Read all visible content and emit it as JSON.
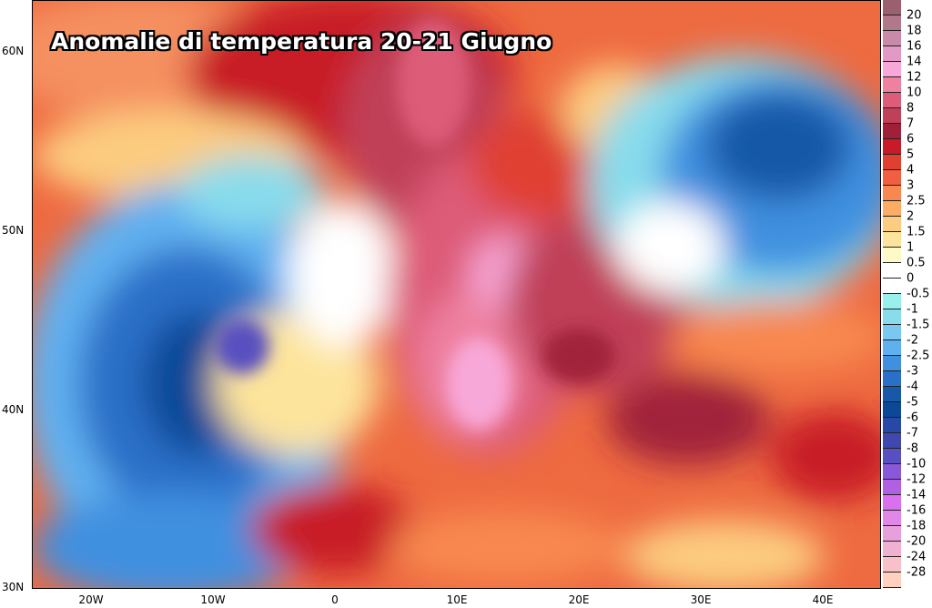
{
  "title": "Anomalie di temperatura 20-21 Giugno",
  "axes": {
    "lat_labels": [
      "60N",
      "50N",
      "40N",
      "30N"
    ],
    "lon_labels": [
      "20W",
      "10W",
      "0",
      "10E",
      "20E",
      "30E",
      "40E"
    ]
  },
  "colorbar": {
    "labels": [
      "20",
      "18",
      "16",
      "14",
      "12",
      "10",
      "8",
      "7",
      "6",
      "5",
      "4",
      "3",
      "2.5",
      "2",
      "1.5",
      "1",
      "0.5",
      "0",
      "-0.5",
      "-1",
      "-1.5",
      "-2",
      "-2.5",
      "-3",
      "-4",
      "-5",
      "-6",
      "-7",
      "-8",
      "-10",
      "-12",
      "-14",
      "-16",
      "-18",
      "-20",
      "-24",
      "-28"
    ],
    "colors": [
      "#9a6070",
      "#b07888",
      "#c88aa8",
      "#e09ac4",
      "#f8a8d8",
      "#ee80a0",
      "#dd5c78",
      "#c04058",
      "#a0203a",
      "#c81a28",
      "#e04030",
      "#f06040",
      "#f88850",
      "#fcac64",
      "#fccc80",
      "#fde49c",
      "#fefac8",
      "#ffffff",
      "#ffffff",
      "#98f0ec",
      "#88dcec",
      "#78c8f0",
      "#60b0f0",
      "#4090e0",
      "#2a70c8",
      "#1858a8",
      "#0c4898",
      "#2848a8",
      "#4048b0",
      "#5850c0",
      "#8858d8",
      "#b060e0",
      "#d870f0",
      "#e088e8",
      "#e8a0dc",
      "#f0b0d0",
      "#f8c0c8",
      "#ffd0c0"
    ]
  }
}
